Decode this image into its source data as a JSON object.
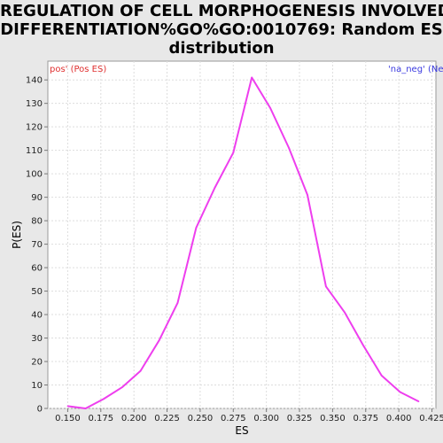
{
  "chart_data": {
    "type": "line",
    "title_lines": [
      "REGULATION OF CELL MORPHOGENESIS INVOLVED IN",
      "DIFFERENTIATION%GO%GO:0010769: Random ES",
      "distribution"
    ],
    "xlabel": "ES",
    "ylabel": "P(ES)",
    "xlim": [
      0.135,
      0.428
    ],
    "ylim": [
      0,
      148
    ],
    "xticks": [
      "0.150",
      "0.175",
      "0.200",
      "0.225",
      "0.250",
      "0.275",
      "0.300",
      "0.325",
      "0.350",
      "0.375",
      "0.400",
      "0.425"
    ],
    "yticks": [
      "0",
      "10",
      "20",
      "30",
      "40",
      "50",
      "60",
      "70",
      "80",
      "90",
      "100",
      "110",
      "120",
      "130",
      "140"
    ],
    "grid": true,
    "legend": {
      "left_label": "pos' (Pos ES)",
      "right_label": "'na_neg' (Ne",
      "left_color": "#e03030",
      "right_color": "#3a3ae0"
    },
    "series": [
      {
        "color": "#ee3eee",
        "x": [
          0.15,
          0.1635,
          0.177,
          0.191,
          0.205,
          0.219,
          0.233,
          0.247,
          0.261,
          0.275,
          0.289,
          0.303,
          0.317,
          0.331,
          0.345,
          0.359,
          0.373,
          0.387,
          0.401,
          0.415
        ],
        "y": [
          1,
          0,
          4,
          9,
          16,
          29,
          45,
          77,
          94,
          109,
          141,
          128,
          111,
          91,
          52,
          41,
          27,
          14,
          7,
          3
        ]
      }
    ]
  }
}
